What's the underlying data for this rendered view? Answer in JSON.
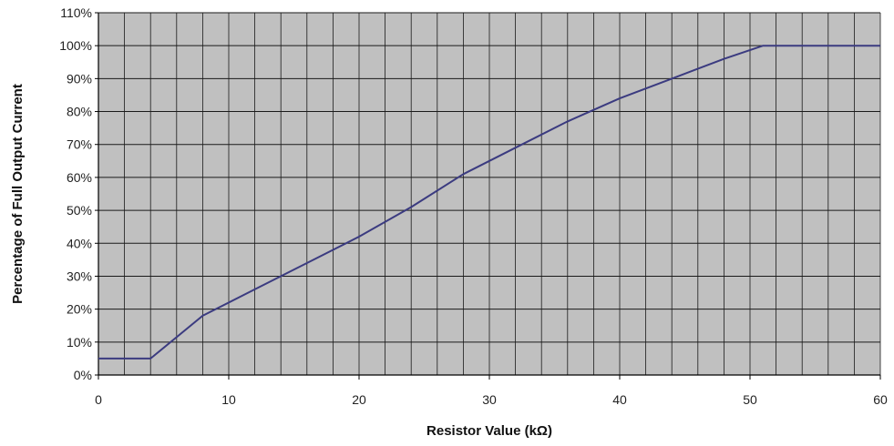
{
  "chart_data": {
    "type": "line",
    "title": "",
    "xlabel": "Resistor Value (kΩ)",
    "ylabel": "Percentage of Full Output Current",
    "xlim": [
      0,
      60
    ],
    "ylim": [
      0,
      110
    ],
    "x_ticks": [
      0,
      10,
      20,
      30,
      40,
      50,
      60
    ],
    "x_tick_labels": [
      "0",
      "10",
      "20",
      "30",
      "40",
      "50",
      "60"
    ],
    "y_ticks": [
      0,
      10,
      20,
      30,
      40,
      50,
      60,
      70,
      80,
      90,
      100,
      110
    ],
    "y_tick_labels": [
      "0%",
      "10%",
      "20%",
      "30%",
      "40%",
      "50%",
      "60%",
      "70%",
      "80%",
      "90%",
      "100%",
      "110%"
    ],
    "x_minor_step": 2,
    "grid": true,
    "legend": "none",
    "colors": {
      "plot_background": "#c0c0c0",
      "line": "#3b3b80",
      "grid": "#1a1a1a"
    },
    "series": [
      {
        "x": [
          0,
          4,
          8,
          12,
          16,
          20,
          24,
          28,
          32,
          36,
          40,
          44,
          48,
          51,
          60
        ],
        "y": [
          5,
          5,
          18,
          26,
          34,
          42,
          51,
          61,
          69,
          77,
          84,
          90,
          96,
          100,
          100
        ]
      }
    ]
  }
}
